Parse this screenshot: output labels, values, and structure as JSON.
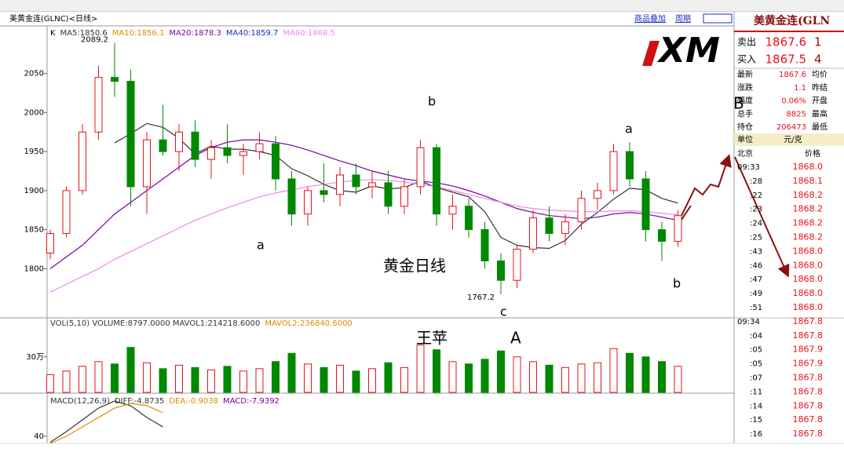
{
  "window": {
    "title": "美黄金连(GLNC)<日线>",
    "links": [
      "商品叠加",
      "周期"
    ],
    "logo": "XM"
  },
  "chart_data": [
    {
      "type": "candlestick",
      "legend": [
        {
          "text": "K",
          "color": "#000000"
        },
        {
          "text": "MA5:1850.6",
          "color": "#333333"
        },
        {
          "text": "MA10:1856.1",
          "color": "#e08a00"
        },
        {
          "text": "MA20:1878.3",
          "color": "#7a00a0"
        },
        {
          "text": "MA40:1859.7",
          "color": "#1a2cc0"
        },
        {
          "text": "MA60:1868.5",
          "color": "#ee88ee"
        }
      ],
      "open": [
        1820,
        1845,
        1900,
        1975,
        2045,
        2040,
        1905,
        1965,
        1950,
        1975,
        1940,
        1955,
        1945,
        1950,
        1960,
        1915,
        1870,
        1900,
        1895,
        1920,
        1905,
        1910,
        1880,
        1905,
        1955,
        1870,
        1880,
        1850,
        1810,
        1785,
        1825,
        1865,
        1845,
        1860,
        1890,
        1900,
        1950,
        1915,
        1850,
        1835
      ],
      "high": [
        1850,
        1905,
        1985,
        2060,
        2089.2,
        2055,
        1975,
        2010,
        1985,
        1990,
        1965,
        1985,
        1960,
        1975,
        1970,
        1925,
        1905,
        1935,
        1930,
        1935,
        1925,
        1925,
        1915,
        1965,
        1960,
        1895,
        1890,
        1860,
        1820,
        1830,
        1875,
        1880,
        1870,
        1900,
        1910,
        1960,
        1962,
        1925,
        1860,
        1875
      ],
      "low": [
        1812,
        1840,
        1895,
        1965,
        2020,
        1880,
        1870,
        1945,
        1925,
        1930,
        1915,
        1935,
        1920,
        1940,
        1900,
        1855,
        1855,
        1885,
        1880,
        1895,
        1890,
        1870,
        1870,
        1895,
        1855,
        1850,
        1840,
        1800,
        1767.2,
        1775,
        1820,
        1835,
        1830,
        1850,
        1875,
        1895,
        1905,
        1835,
        1810,
        1828
      ],
      "close": [
        1845,
        1900,
        1975,
        2045,
        2040,
        1905,
        1965,
        1950,
        1975,
        1940,
        1955,
        1945,
        1950,
        1960,
        1915,
        1870,
        1900,
        1895,
        1920,
        1905,
        1910,
        1880,
        1905,
        1955,
        1870,
        1880,
        1850,
        1810,
        1785,
        1825,
        1865,
        1845,
        1860,
        1890,
        1900,
        1950,
        1915,
        1850,
        1835,
        1868
      ],
      "up_color": "#e8101a",
      "down_color": "#008800",
      "series": [
        {
          "name": "MA5",
          "color": "#333333",
          "values": [
            null,
            null,
            null,
            null,
            1961,
            1973,
            1986,
            1981,
            1967,
            1947,
            1957,
            1953,
            1953,
            1950,
            1945,
            1928,
            1919,
            1908,
            1900,
            1898,
            1906,
            1902,
            1904,
            1912,
            1904,
            1898,
            1892,
            1873,
            1840,
            1830,
            1827,
            1826,
            1836,
            1857,
            1872,
            1889,
            1903,
            1901,
            1890,
            1884
          ]
        },
        {
          "name": "MA20",
          "color": "#7a00a0",
          "values": [
            1800,
            1815,
            1830,
            1850,
            1870,
            1885,
            1900,
            1915,
            1930,
            1945,
            1955,
            1962,
            1965,
            1965,
            1962,
            1958,
            1952,
            1945,
            1938,
            1932,
            1925,
            1920,
            1915,
            1912,
            1910,
            1906,
            1900,
            1893,
            1885,
            1877,
            1872,
            1868,
            1866,
            1864,
            1866,
            1870,
            1872,
            1870,
            1866,
            1862
          ]
        },
        {
          "name": "MA60",
          "color": "#ee88ee",
          "values": [
            1770,
            1780,
            1790,
            1800,
            1812,
            1822,
            1832,
            1842,
            1852,
            1862,
            1870,
            1878,
            1885,
            1892,
            1897,
            1901,
            1905,
            1908,
            1911,
            1913,
            1914,
            1913,
            1911,
            1908,
            1905,
            1900,
            1895,
            1890,
            1885,
            1880,
            1877,
            1875,
            1874,
            1873,
            1873,
            1874,
            1874,
            1873,
            1871,
            1869
          ]
        }
      ],
      "ylim": [
        1737,
        2109
      ],
      "yticks": [
        1800,
        1850,
        1900,
        1950,
        2000,
        2050
      ]
    },
    {
      "type": "bar",
      "legend": [
        {
          "text": "VOL(5,10) VOLUME:8797.0000 MAVOL1:214218.6000",
          "color": "#333333"
        },
        {
          "text": "MAVOL2:236840.6000",
          "color": "#e08a00"
        }
      ],
      "values": [
        150000,
        180000,
        220000,
        260000,
        240000,
        380000,
        250000,
        200000,
        230000,
        210000,
        190000,
        220000,
        180000,
        200000,
        260000,
        330000,
        240000,
        210000,
        230000,
        180000,
        200000,
        250000,
        210000,
        400000,
        360000,
        260000,
        240000,
        280000,
        350000,
        300000,
        260000,
        230000,
        210000,
        240000,
        250000,
        370000,
        330000,
        300000,
        260000,
        220000
      ],
      "ylim": [
        0,
        630000
      ],
      "yticks": [
        {
          "value": 300000,
          "label": "30万"
        }
      ]
    },
    {
      "type": "line",
      "legend": [
        {
          "text": "MACD(12,26,9)",
          "color": "#333333"
        },
        {
          "text": "DIFF:-4.8735",
          "color": "#333333"
        },
        {
          "text": "DEA:-0.9038",
          "color": "#e08a00"
        },
        {
          "text": "MACD:-7.9392",
          "color": "#7a00a0"
        }
      ],
      "series": [
        {
          "name": "DIFF",
          "color": "#333333",
          "values": [
            37.5,
            42,
            47,
            52,
            55,
            53,
            48,
            44,
            null,
            null,
            null,
            null,
            null,
            null,
            null,
            null,
            null,
            null,
            null,
            null,
            null,
            null,
            null,
            null,
            null,
            null,
            null,
            null,
            null,
            null,
            null,
            null,
            null,
            null,
            null,
            null,
            null,
            null,
            null,
            null
          ]
        },
        {
          "name": "DEA",
          "color": "#e08a00",
          "values": [
            37,
            40,
            44,
            48,
            52,
            54,
            53,
            50,
            null,
            null,
            null,
            null,
            null,
            null,
            null,
            null,
            null,
            null,
            null,
            null,
            null,
            null,
            null,
            null,
            null,
            null,
            null,
            null,
            null,
            null,
            null,
            null,
            null,
            null,
            null,
            null,
            null,
            null,
            null,
            null
          ]
        }
      ],
      "ylim": [
        37,
        57
      ],
      "yticks": [
        40
      ]
    }
  ],
  "annotations": [
    "b",
    "a",
    "a",
    "黄金日线",
    "b",
    "c",
    "王苹",
    "A",
    "B"
  ],
  "quote_panel": {
    "title": "美黄金连(GLN",
    "quotes": [
      [
        "卖出",
        "1867.6",
        "1"
      ],
      [
        "买入",
        "1867.5",
        "4"
      ]
    ],
    "stats": [
      [
        "最新",
        "1867.6",
        "均价"
      ],
      [
        "涨跌",
        "1.1",
        "昨结"
      ],
      [
        "幅度",
        "0.06%",
        "开盘"
      ],
      [
        "总手",
        "8825",
        "最高"
      ],
      [
        "持仓",
        "206473",
        "最低"
      ]
    ],
    "unit": [
      "单位",
      "元/克"
    ],
    "ticks_header": [
      "北京",
      "价格"
    ],
    "ticks": [
      [
        "09:33",
        "1868.0"
      ],
      [
        ":28",
        "1868.1"
      ],
      [
        ":22",
        "1868.2"
      ],
      [
        ":23",
        "1868.2"
      ],
      [
        ":24",
        "1868.2"
      ],
      [
        ":25",
        "1868.2"
      ],
      [
        ":43",
        "1868.0"
      ],
      [
        ":46",
        "1868.0"
      ],
      [
        ":47",
        "1868.0"
      ],
      [
        ":49",
        "1868.0"
      ],
      [
        ":51",
        "1868.0"
      ],
      [
        "09:34",
        "1867.8"
      ],
      [
        ":04",
        "1867.8"
      ],
      [
        ":05",
        "1867.9"
      ],
      [
        ":05",
        "1867.9"
      ],
      [
        ":07",
        "1867.8"
      ],
      [
        ":11",
        "1867.8"
      ],
      [
        ":14",
        "1867.8"
      ],
      [
        ":15",
        "1867.8"
      ],
      [
        ":16",
        "1867.8"
      ]
    ]
  }
}
